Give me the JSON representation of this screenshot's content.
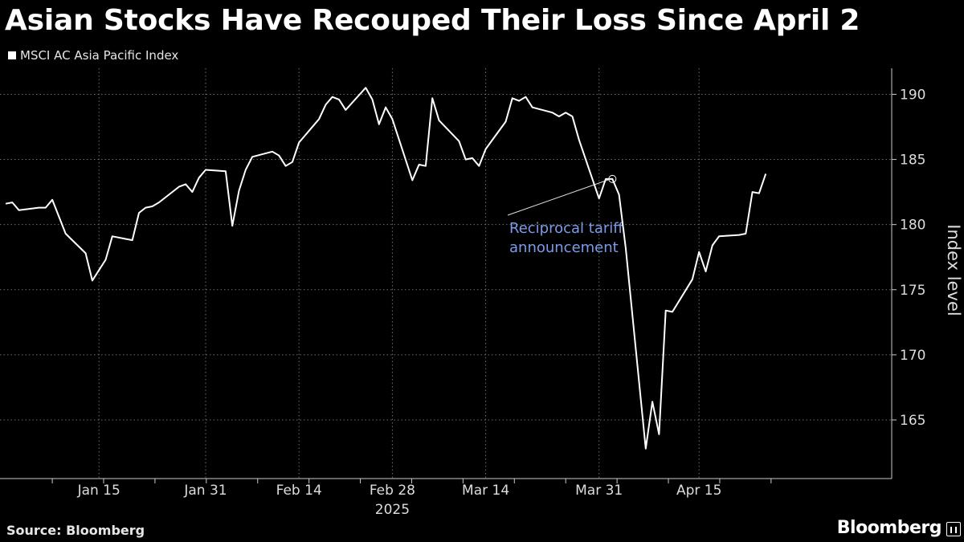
{
  "title": "Asian Stocks Have Recouped Their Loss Since April 2",
  "source": "Source: Bloomberg",
  "brand": "Bloomberg",
  "brand_icon": "bloomberg-chart-icon",
  "colors": {
    "background": "#000000",
    "line": "#ffffff",
    "annotation": "#7b9be8",
    "grid": "#6e6e6e"
  },
  "chart_data": {
    "type": "line",
    "ylabel": "Index level",
    "ylim": [
      160.5,
      192
    ],
    "yticks": [
      165,
      170,
      175,
      180,
      185,
      190
    ],
    "x_start": "2025-01-01",
    "x_end": "2025-05-01",
    "xticks": [
      {
        "date": "2025-01-15",
        "label": "Jan 15"
      },
      {
        "date": "2025-01-31",
        "label": "Jan 31"
      },
      {
        "date": "2025-02-14",
        "label": "Feb 14"
      },
      {
        "date": "2025-02-28",
        "label": "Feb 28"
      },
      {
        "date": "2025-03-14",
        "label": "Mar 14"
      },
      {
        "date": "2025-03-31",
        "label": "Mar 31"
      },
      {
        "date": "2025-04-15",
        "label": "Apr 15"
      }
    ],
    "year_label": "2025",
    "grid": true,
    "legend_position": "top-left",
    "series": [
      {
        "name": "MSCI AC Asia Pacific Index",
        "x": [
          "2025-01-01",
          "2025-01-02",
          "2025-01-03",
          "2025-01-06",
          "2025-01-07",
          "2025-01-08",
          "2025-01-09",
          "2025-01-10",
          "2025-01-13",
          "2025-01-14",
          "2025-01-15",
          "2025-01-16",
          "2025-01-17",
          "2025-01-20",
          "2025-01-21",
          "2025-01-22",
          "2025-01-23",
          "2025-01-24",
          "2025-01-27",
          "2025-01-28",
          "2025-01-29",
          "2025-01-30",
          "2025-01-31",
          "2025-02-03",
          "2025-02-04",
          "2025-02-05",
          "2025-02-06",
          "2025-02-07",
          "2025-02-10",
          "2025-02-11",
          "2025-02-12",
          "2025-02-13",
          "2025-02-14",
          "2025-02-17",
          "2025-02-18",
          "2025-02-19",
          "2025-02-20",
          "2025-02-21",
          "2025-02-24",
          "2025-02-25",
          "2025-02-26",
          "2025-02-27",
          "2025-02-28",
          "2025-03-03",
          "2025-03-04",
          "2025-03-05",
          "2025-03-06",
          "2025-03-07",
          "2025-03-10",
          "2025-03-11",
          "2025-03-12",
          "2025-03-13",
          "2025-03-14",
          "2025-03-17",
          "2025-03-18",
          "2025-03-19",
          "2025-03-20",
          "2025-03-21",
          "2025-03-24",
          "2025-03-25",
          "2025-03-26",
          "2025-03-27",
          "2025-03-28",
          "2025-03-31",
          "2025-04-01",
          "2025-04-02",
          "2025-04-03",
          "2025-04-04",
          "2025-04-07",
          "2025-04-08",
          "2025-04-09",
          "2025-04-10",
          "2025-04-11",
          "2025-04-14",
          "2025-04-15",
          "2025-04-16",
          "2025-04-17",
          "2025-04-18",
          "2025-04-21",
          "2025-04-22",
          "2025-04-23",
          "2025-04-24",
          "2025-04-25"
        ],
        "values": [
          181.6,
          181.7,
          181.1,
          181.3,
          181.3,
          181.9,
          180.6,
          179.3,
          177.8,
          175.7,
          176.5,
          177.3,
          179.1,
          178.8,
          180.9,
          181.3,
          181.4,
          181.7,
          182.9,
          183.1,
          182.5,
          183.6,
          184.2,
          184.1,
          179.9,
          182.6,
          184.2,
          185.2,
          185.6,
          185.3,
          184.5,
          184.8,
          186.3,
          188.1,
          189.2,
          189.8,
          189.6,
          188.8,
          190.5,
          189.6,
          187.7,
          189.0,
          188.1,
          183.4,
          184.6,
          184.5,
          189.7,
          188.0,
          186.4,
          185.0,
          185.1,
          184.5,
          185.8,
          187.9,
          189.7,
          189.5,
          189.8,
          189.0,
          188.6,
          188.3,
          188.6,
          188.3,
          186.5,
          182.0,
          183.5,
          183.5,
          182.3,
          178.2,
          162.8,
          166.4,
          163.9,
          173.4,
          173.3,
          175.8,
          177.9,
          176.4,
          178.4,
          179.1,
          179.2,
          179.3,
          182.5,
          182.4,
          183.9
        ]
      }
    ],
    "annotations": [
      {
        "text_lines": [
          "Reciprocal tariff",
          "announcement"
        ],
        "date": "2025-04-02",
        "value": 183.5
      }
    ]
  }
}
